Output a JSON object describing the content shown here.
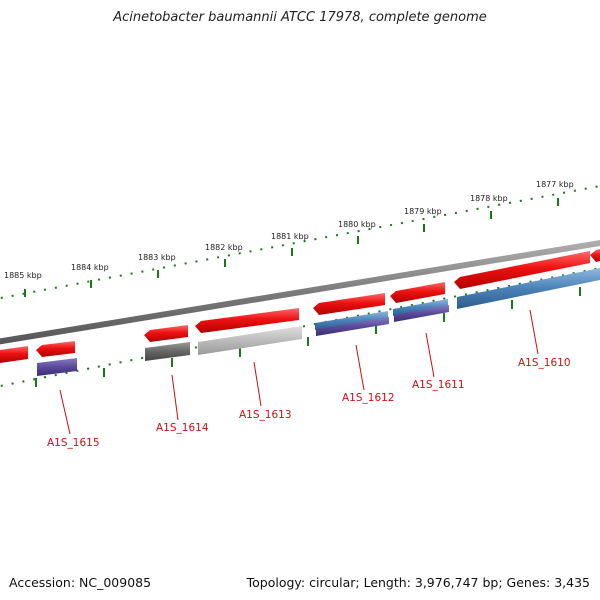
{
  "title": "Acinetobacter baumannii ATCC 17978, complete genome",
  "footer": {
    "accession": "Accession: NC_009085",
    "summary": "Topology: circular; Length: 3,976,747 bp; Genes: 3,435"
  },
  "colors": {
    "backbone": "#7a7a7a",
    "cds": "#ee1111",
    "tick": "#1a7a1a",
    "label": "#cc1111",
    "blue": "#4a82b8",
    "purple": "#5b4a9a",
    "dark_gray": "#666666",
    "light_gray": "#bbbbbb"
  },
  "scale_labels": [
    "1885 kbp",
    "1884 kbp",
    "1883 kbp",
    "1882 kbp",
    "1881 kbp",
    "1880 kbp",
    "1879 kbp",
    "1878 kbp",
    "1877 kbp"
  ],
  "gene_labels": [
    "A1S_1615",
    "A1S_1614",
    "A1S_1613",
    "A1S_1612",
    "A1S_1611",
    "A1S_1610"
  ]
}
